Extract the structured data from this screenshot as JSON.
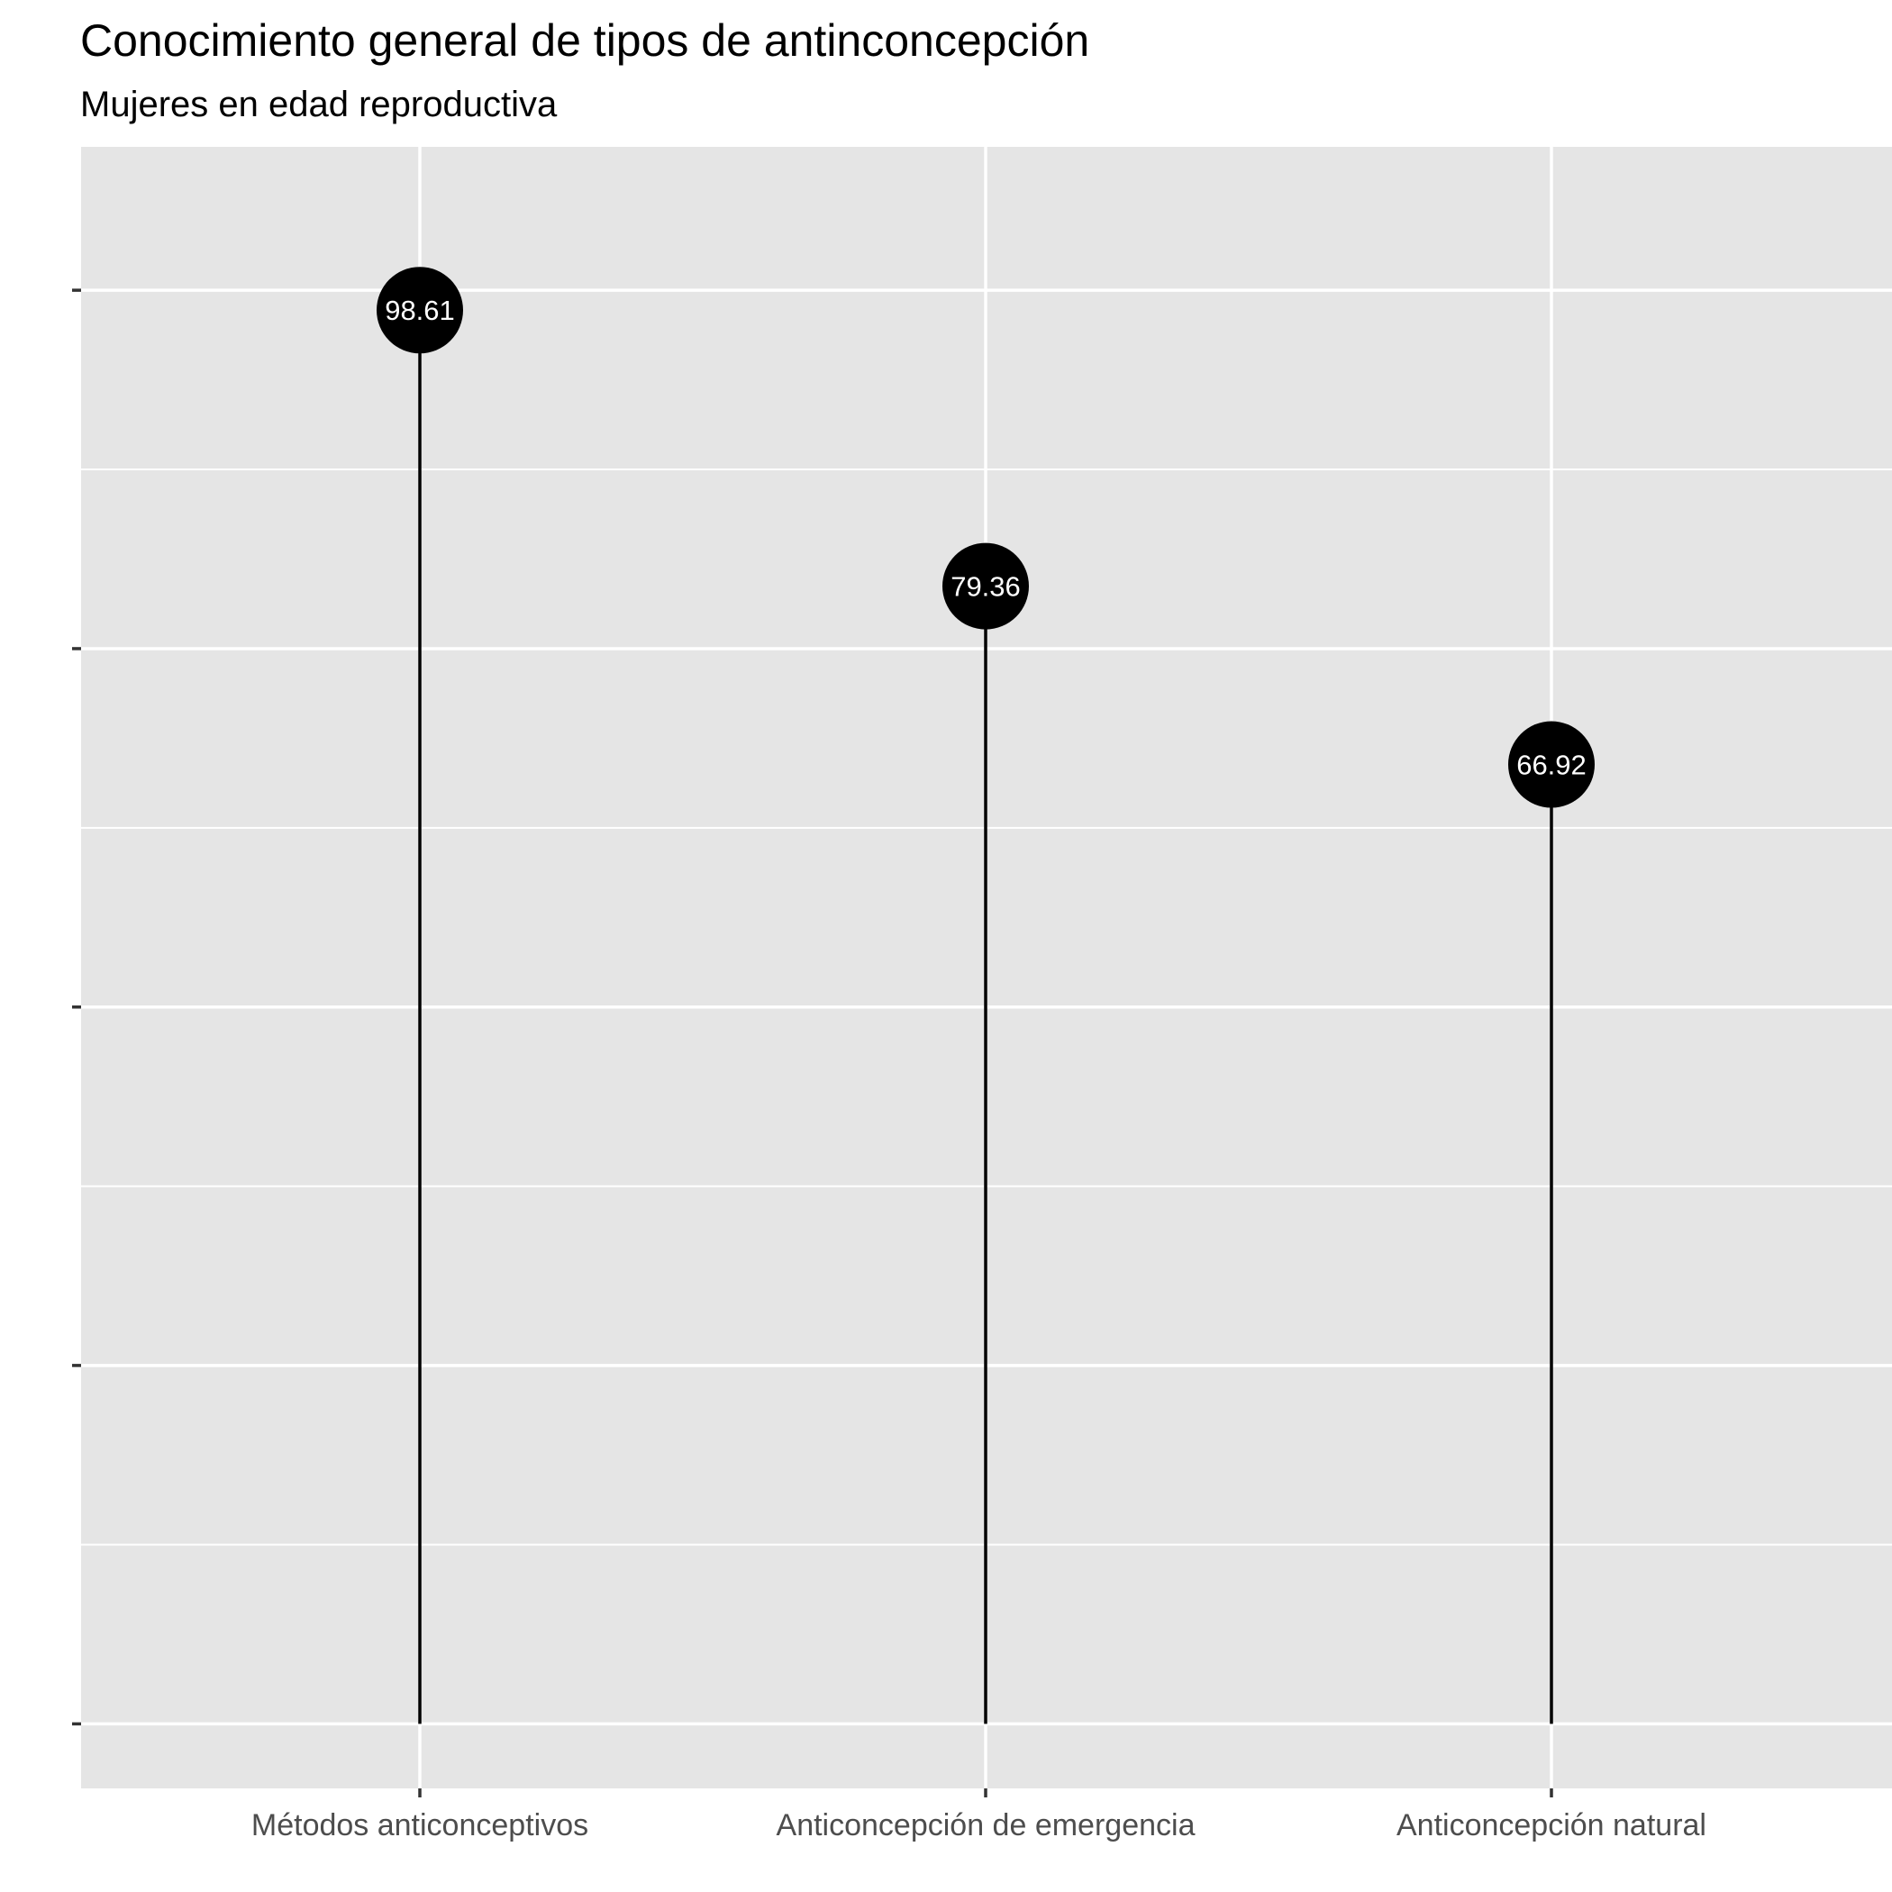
{
  "chart_data": {
    "type": "lollipop",
    "title": "Conocimiento general de tipos de antinconcepción",
    "subtitle": "Mujeres en edad reproductiva",
    "xlabel": "",
    "ylabel": "",
    "categories": [
      "Métodos anticonceptivos",
      "Anticoncepción de emergencia",
      "Anticoncepción natural"
    ],
    "values": [
      98.61,
      79.36,
      66.92
    ],
    "data_labels": [
      "98.61",
      "79.36",
      "66.92"
    ],
    "y_tick_labels_visible": false,
    "ylim": [
      -4.5,
      110
    ],
    "y_major_ticks": [
      0,
      25,
      50,
      75,
      100
    ],
    "grid": true,
    "panel_background": "#e5e5e5",
    "grid_color": "#ffffff",
    "marker_color": "#000000",
    "stem_color": "#000000",
    "label_color": "#ffffff"
  }
}
